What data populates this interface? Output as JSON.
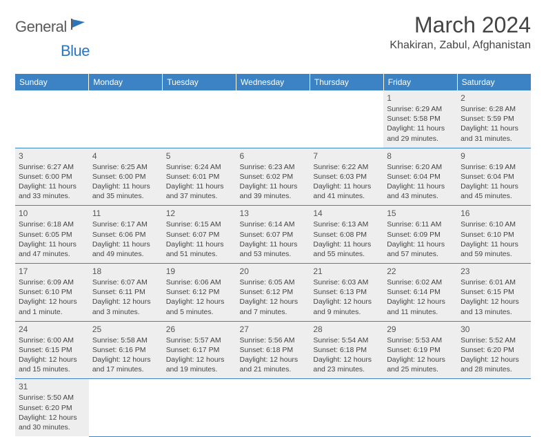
{
  "logo": {
    "part1": "General",
    "part2": "Blue"
  },
  "title": "March 2024",
  "location": "Khakiran, Zabul, Afghanistan",
  "colors": {
    "header_bg": "#3b83c4",
    "header_text": "#ffffff",
    "cell_bg": "#eeeeee",
    "border": "#3b83c4",
    "logo_gray": "#5a5a5a",
    "logo_blue": "#2a75bb",
    "text": "#444444"
  },
  "weekdays": [
    "Sunday",
    "Monday",
    "Tuesday",
    "Wednesday",
    "Thursday",
    "Friday",
    "Saturday"
  ],
  "weeks": [
    [
      null,
      null,
      null,
      null,
      null,
      {
        "n": "1",
        "sunrise": "Sunrise: 6:29 AM",
        "sunset": "Sunset: 5:58 PM",
        "daylight": "Daylight: 11 hours and 29 minutes."
      },
      {
        "n": "2",
        "sunrise": "Sunrise: 6:28 AM",
        "sunset": "Sunset: 5:59 PM",
        "daylight": "Daylight: 11 hours and 31 minutes."
      }
    ],
    [
      {
        "n": "3",
        "sunrise": "Sunrise: 6:27 AM",
        "sunset": "Sunset: 6:00 PM",
        "daylight": "Daylight: 11 hours and 33 minutes."
      },
      {
        "n": "4",
        "sunrise": "Sunrise: 6:25 AM",
        "sunset": "Sunset: 6:00 PM",
        "daylight": "Daylight: 11 hours and 35 minutes."
      },
      {
        "n": "5",
        "sunrise": "Sunrise: 6:24 AM",
        "sunset": "Sunset: 6:01 PM",
        "daylight": "Daylight: 11 hours and 37 minutes."
      },
      {
        "n": "6",
        "sunrise": "Sunrise: 6:23 AM",
        "sunset": "Sunset: 6:02 PM",
        "daylight": "Daylight: 11 hours and 39 minutes."
      },
      {
        "n": "7",
        "sunrise": "Sunrise: 6:22 AM",
        "sunset": "Sunset: 6:03 PM",
        "daylight": "Daylight: 11 hours and 41 minutes."
      },
      {
        "n": "8",
        "sunrise": "Sunrise: 6:20 AM",
        "sunset": "Sunset: 6:04 PM",
        "daylight": "Daylight: 11 hours and 43 minutes."
      },
      {
        "n": "9",
        "sunrise": "Sunrise: 6:19 AM",
        "sunset": "Sunset: 6:04 PM",
        "daylight": "Daylight: 11 hours and 45 minutes."
      }
    ],
    [
      {
        "n": "10",
        "sunrise": "Sunrise: 6:18 AM",
        "sunset": "Sunset: 6:05 PM",
        "daylight": "Daylight: 11 hours and 47 minutes."
      },
      {
        "n": "11",
        "sunrise": "Sunrise: 6:17 AM",
        "sunset": "Sunset: 6:06 PM",
        "daylight": "Daylight: 11 hours and 49 minutes."
      },
      {
        "n": "12",
        "sunrise": "Sunrise: 6:15 AM",
        "sunset": "Sunset: 6:07 PM",
        "daylight": "Daylight: 11 hours and 51 minutes."
      },
      {
        "n": "13",
        "sunrise": "Sunrise: 6:14 AM",
        "sunset": "Sunset: 6:07 PM",
        "daylight": "Daylight: 11 hours and 53 minutes."
      },
      {
        "n": "14",
        "sunrise": "Sunrise: 6:13 AM",
        "sunset": "Sunset: 6:08 PM",
        "daylight": "Daylight: 11 hours and 55 minutes."
      },
      {
        "n": "15",
        "sunrise": "Sunrise: 6:11 AM",
        "sunset": "Sunset: 6:09 PM",
        "daylight": "Daylight: 11 hours and 57 minutes."
      },
      {
        "n": "16",
        "sunrise": "Sunrise: 6:10 AM",
        "sunset": "Sunset: 6:10 PM",
        "daylight": "Daylight: 11 hours and 59 minutes."
      }
    ],
    [
      {
        "n": "17",
        "sunrise": "Sunrise: 6:09 AM",
        "sunset": "Sunset: 6:10 PM",
        "daylight": "Daylight: 12 hours and 1 minute."
      },
      {
        "n": "18",
        "sunrise": "Sunrise: 6:07 AM",
        "sunset": "Sunset: 6:11 PM",
        "daylight": "Daylight: 12 hours and 3 minutes."
      },
      {
        "n": "19",
        "sunrise": "Sunrise: 6:06 AM",
        "sunset": "Sunset: 6:12 PM",
        "daylight": "Daylight: 12 hours and 5 minutes."
      },
      {
        "n": "20",
        "sunrise": "Sunrise: 6:05 AM",
        "sunset": "Sunset: 6:12 PM",
        "daylight": "Daylight: 12 hours and 7 minutes."
      },
      {
        "n": "21",
        "sunrise": "Sunrise: 6:03 AM",
        "sunset": "Sunset: 6:13 PM",
        "daylight": "Daylight: 12 hours and 9 minutes."
      },
      {
        "n": "22",
        "sunrise": "Sunrise: 6:02 AM",
        "sunset": "Sunset: 6:14 PM",
        "daylight": "Daylight: 12 hours and 11 minutes."
      },
      {
        "n": "23",
        "sunrise": "Sunrise: 6:01 AM",
        "sunset": "Sunset: 6:15 PM",
        "daylight": "Daylight: 12 hours and 13 minutes."
      }
    ],
    [
      {
        "n": "24",
        "sunrise": "Sunrise: 6:00 AM",
        "sunset": "Sunset: 6:15 PM",
        "daylight": "Daylight: 12 hours and 15 minutes."
      },
      {
        "n": "25",
        "sunrise": "Sunrise: 5:58 AM",
        "sunset": "Sunset: 6:16 PM",
        "daylight": "Daylight: 12 hours and 17 minutes."
      },
      {
        "n": "26",
        "sunrise": "Sunrise: 5:57 AM",
        "sunset": "Sunset: 6:17 PM",
        "daylight": "Daylight: 12 hours and 19 minutes."
      },
      {
        "n": "27",
        "sunrise": "Sunrise: 5:56 AM",
        "sunset": "Sunset: 6:18 PM",
        "daylight": "Daylight: 12 hours and 21 minutes."
      },
      {
        "n": "28",
        "sunrise": "Sunrise: 5:54 AM",
        "sunset": "Sunset: 6:18 PM",
        "daylight": "Daylight: 12 hours and 23 minutes."
      },
      {
        "n": "29",
        "sunrise": "Sunrise: 5:53 AM",
        "sunset": "Sunset: 6:19 PM",
        "daylight": "Daylight: 12 hours and 25 minutes."
      },
      {
        "n": "30",
        "sunrise": "Sunrise: 5:52 AM",
        "sunset": "Sunset: 6:20 PM",
        "daylight": "Daylight: 12 hours and 28 minutes."
      }
    ],
    [
      {
        "n": "31",
        "sunrise": "Sunrise: 5:50 AM",
        "sunset": "Sunset: 6:20 PM",
        "daylight": "Daylight: 12 hours and 30 minutes."
      },
      null,
      null,
      null,
      null,
      null,
      null
    ]
  ]
}
